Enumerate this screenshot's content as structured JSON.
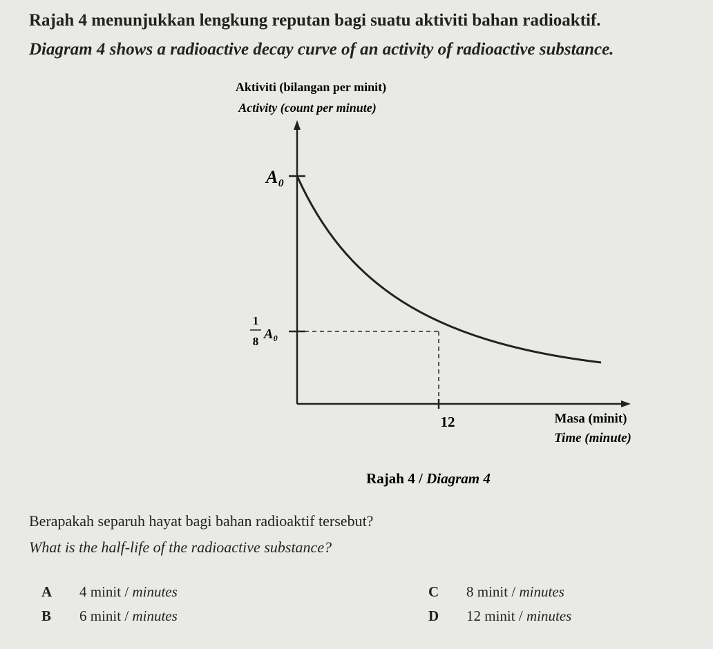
{
  "question": {
    "line_ms": "Rajah 4 menunjukkan lengkung reputan bagi suatu aktiviti bahan radioaktif.",
    "line_en": "Diagram 4 shows a radioactive decay curve of an activity of radioactive substance."
  },
  "diagram": {
    "y_label_ms": "Aktiviti (bilangan per minit)",
    "y_label_en": "Activity (count per minute)",
    "y_top_label": "A₀",
    "y_mid_numerator": "1",
    "y_mid_denominator": "8",
    "y_mid_symbol": "A₀",
    "x_tick": "12",
    "x_label_ms": "Masa (minit)",
    "x_label_en": "Time (minute)"
  },
  "caption": {
    "ms": "Rajah 4 /",
    "en": "Diagram 4"
  },
  "prompt": {
    "ms": "Berapakah separuh hayat bagi bahan radioaktif tersebut?",
    "en": "What is the half-life of the radioactive substance?"
  },
  "options": [
    {
      "letter": "A",
      "ms": "4 minit /",
      "en": "minutes"
    },
    {
      "letter": "B",
      "ms": "6 minit /",
      "en": "minutes"
    },
    {
      "letter": "C",
      "ms": "8 minit /",
      "en": "minutes"
    },
    {
      "letter": "D",
      "ms": "12 minit /",
      "en": "minutes"
    }
  ]
}
